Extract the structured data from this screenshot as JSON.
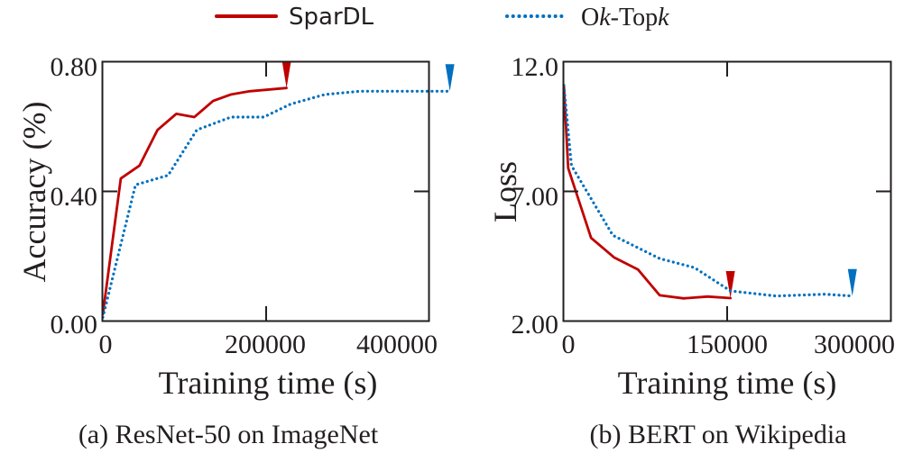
{
  "legend": {
    "entries": [
      {
        "name": "SparDL",
        "style": "solid",
        "color": "#c00000"
      },
      {
        "name_parts": [
          "O",
          "k",
          "-Top",
          "k"
        ],
        "name": "Ok-Topk",
        "style": "dotted",
        "color": "#0070c0"
      }
    ]
  },
  "chart_data": [
    {
      "type": "line",
      "panel": "a",
      "caption": "(a) ResNet-50 on ImageNet",
      "xlabel": "Training time (s)",
      "ylabel": "Accuracy (%)",
      "xlim": [
        0,
        470000
      ],
      "ylim": [
        0,
        0.8
      ],
      "xticks": [
        0,
        200000,
        400000
      ],
      "xtick_labels": [
        "0",
        "200000",
        "400000"
      ],
      "yticks": [
        0,
        0.4,
        0.8
      ],
      "ytick_labels": [
        "0.00",
        "0.40",
        "0.80"
      ],
      "grid": false,
      "series": [
        {
          "name": "SparDL",
          "color": "#c00000",
          "style": "solid",
          "end_marker": true,
          "x": [
            0,
            22000,
            45000,
            67000,
            90000,
            112000,
            135000,
            157000,
            180000,
            225000
          ],
          "y": [
            0.02,
            0.44,
            0.48,
            0.59,
            0.64,
            0.63,
            0.68,
            0.7,
            0.71,
            0.72
          ]
        },
        {
          "name": "Ok-Topk",
          "color": "#0070c0",
          "style": "dotted",
          "end_marker": true,
          "x": [
            0,
            40000,
            80000,
            115000,
            157000,
            197000,
            230000,
            272000,
            315000,
            380000,
            425000
          ],
          "y": [
            0.01,
            0.42,
            0.45,
            0.59,
            0.63,
            0.63,
            0.67,
            0.7,
            0.71,
            0.71,
            0.71
          ]
        }
      ]
    },
    {
      "type": "line",
      "panel": "b",
      "caption": "(b) BERT on Wikipedia",
      "xlabel": "Training time (s)",
      "ylabel": "Loss",
      "xlim": [
        0,
        300000
      ],
      "ylim": [
        2,
        12
      ],
      "xticks": [
        0,
        150000,
        300000
      ],
      "xtick_labels": [
        "0",
        "150000",
        "300000"
      ],
      "yticks": [
        2,
        7,
        12
      ],
      "ytick_labels": [
        "2.00",
        "7.00",
        "12.0"
      ],
      "grid": false,
      "series": [
        {
          "name": "SparDL",
          "color": "#c00000",
          "style": "solid",
          "end_marker": true,
          "x": [
            0,
            4000,
            25000,
            46000,
            68000,
            88000,
            110000,
            132000,
            153000
          ],
          "y": [
            11.1,
            7.9,
            5.2,
            4.45,
            3.98,
            2.98,
            2.86,
            2.93,
            2.87
          ]
        },
        {
          "name": "Ok-Topk",
          "color": "#0070c0",
          "style": "dotted",
          "end_marker": true,
          "x": [
            0,
            7000,
            45000,
            88000,
            120000,
            153000,
            195000,
            240000,
            265000
          ],
          "y": [
            11.1,
            8.0,
            5.3,
            4.4,
            4.05,
            3.15,
            2.95,
            3.02,
            2.95
          ]
        }
      ]
    }
  ]
}
